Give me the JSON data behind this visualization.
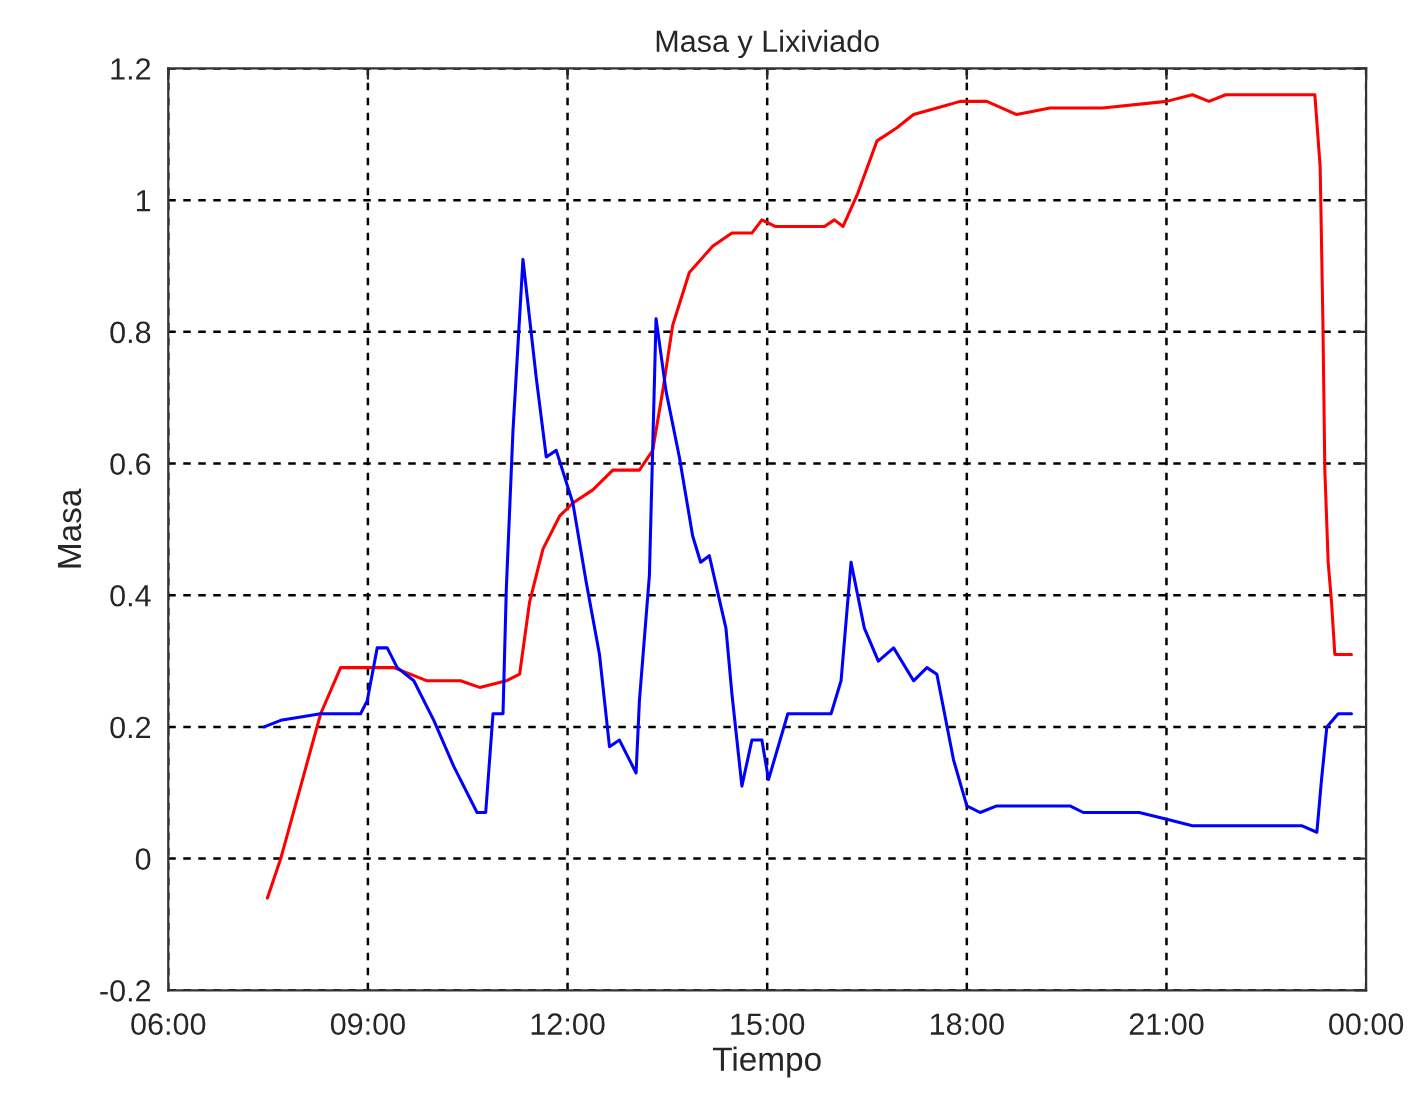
{
  "chart_data": {
    "type": "line",
    "title": "Masa y Lixiviado",
    "xlabel": "Tiempo",
    "ylabel": "Masa",
    "xlim": [
      6,
      24
    ],
    "xticks": [
      {
        "value": 6,
        "label": "06:00"
      },
      {
        "value": 9,
        "label": "09:00"
      },
      {
        "value": 12,
        "label": "12:00"
      },
      {
        "value": 15,
        "label": "15:00"
      },
      {
        "value": 18,
        "label": "18:00"
      },
      {
        "value": 21,
        "label": "21:00"
      },
      {
        "value": 24,
        "label": "00:00"
      }
    ],
    "ylim": [
      -0.2,
      1.2
    ],
    "yticks": [
      -0.2,
      0,
      0.2,
      0.4,
      0.6,
      0.8,
      1,
      1.2
    ],
    "grid": true,
    "line_style": "solid",
    "series": [
      {
        "color": "#ff0000",
        "x": [
          7.49,
          7.69,
          8.29,
          8.59,
          8.89,
          9.39,
          9.89,
          10.39,
          10.68,
          11.08,
          11.28,
          11.43,
          11.63,
          11.88,
          12.08,
          12.38,
          12.68,
          13.08,
          13.28,
          13.43,
          13.58,
          13.83,
          14.18,
          14.47,
          14.77,
          14.92,
          15.12,
          15.46,
          15.86,
          16.01,
          16.14,
          16.36,
          16.65,
          16.95,
          17.2,
          17.55,
          17.9,
          18.3,
          18.75,
          19.25,
          20.04,
          21.0,
          21.39,
          21.64,
          21.89,
          23.23,
          23.31,
          23.35,
          23.38,
          23.43,
          23.48,
          23.53,
          23.78
        ],
        "values": [
          -0.06,
          0.0,
          0.22,
          0.29,
          0.29,
          0.29,
          0.27,
          0.27,
          0.26,
          0.27,
          0.28,
          0.39,
          0.47,
          0.52,
          0.54,
          0.56,
          0.59,
          0.59,
          0.62,
          0.71,
          0.81,
          0.89,
          0.93,
          0.95,
          0.95,
          0.97,
          0.96,
          0.96,
          0.96,
          0.97,
          0.96,
          1.01,
          1.09,
          1.11,
          1.13,
          1.14,
          1.15,
          1.15,
          1.13,
          1.14,
          1.14,
          1.15,
          1.16,
          1.15,
          1.16,
          1.16,
          1.05,
          0.82,
          0.59,
          0.45,
          0.39,
          0.31,
          0.31
        ]
      },
      {
        "color": "#0000ff",
        "x": [
          7.44,
          7.69,
          8.29,
          8.89,
          8.99,
          9.14,
          9.29,
          9.44,
          9.69,
          9.99,
          10.29,
          10.64,
          10.77,
          10.88,
          11.03,
          11.08,
          11.18,
          11.33,
          11.53,
          11.68,
          11.83,
          12.08,
          12.28,
          12.48,
          12.63,
          12.78,
          13.03,
          13.08,
          13.23,
          13.33,
          13.48,
          13.68,
          13.88,
          14.0,
          14.13,
          14.38,
          14.47,
          14.62,
          14.77,
          14.92,
          15.02,
          15.31,
          15.96,
          16.11,
          16.26,
          16.46,
          16.67,
          16.9,
          17.2,
          17.4,
          17.55,
          17.8,
          18.0,
          18.2,
          18.45,
          19.55,
          19.75,
          20.29,
          20.59,
          20.99,
          21.39,
          23.03,
          23.26,
          23.33,
          23.41,
          23.58,
          23.78
        ],
        "values": [
          0.2,
          0.21,
          0.22,
          0.22,
          0.24,
          0.32,
          0.32,
          0.29,
          0.27,
          0.21,
          0.14,
          0.07,
          0.07,
          0.22,
          0.22,
          0.41,
          0.65,
          0.91,
          0.73,
          0.61,
          0.62,
          0.54,
          0.42,
          0.31,
          0.17,
          0.18,
          0.13,
          0.24,
          0.43,
          0.82,
          0.71,
          0.61,
          0.49,
          0.45,
          0.46,
          0.35,
          0.25,
          0.11,
          0.18,
          0.18,
          0.12,
          0.22,
          0.22,
          0.27,
          0.45,
          0.35,
          0.3,
          0.32,
          0.27,
          0.29,
          0.28,
          0.15,
          0.08,
          0.07,
          0.08,
          0.08,
          0.07,
          0.07,
          0.07,
          0.06,
          0.05,
          0.05,
          0.04,
          0.12,
          0.2,
          0.22,
          0.22
        ]
      }
    ]
  }
}
